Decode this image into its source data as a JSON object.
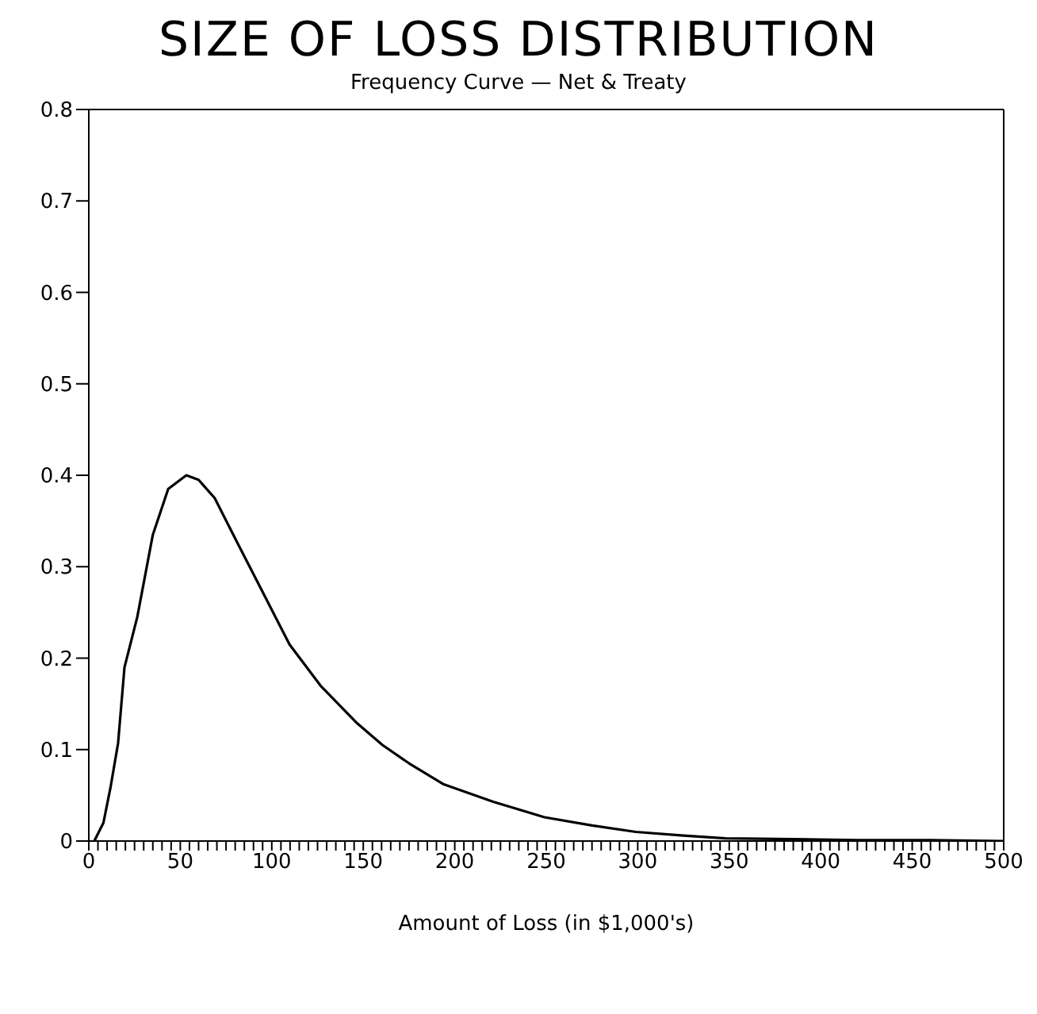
{
  "chart_data": {
    "type": "line",
    "title": "SIZE OF LOSS DISTRIBUTION",
    "subtitle": "Frequency Curve — Net & Treaty",
    "xlabel": "Amount of Loss (in $1,000's)",
    "x": [
      3,
      8,
      12,
      16,
      19.5,
      26.5,
      35,
      43.4,
      53.3,
      60,
      68.8,
      81.5,
      95.6,
      109.7,
      126.6,
      146,
      160.5,
      175,
      194,
      221,
      249,
      275,
      299,
      325,
      348,
      385,
      420,
      460,
      500
    ],
    "series": [
      {
        "color": "#000000",
        "values": [
          0,
          0.02,
          0.06,
          0.107,
          0.19,
          0.245,
          0.335,
          0.385,
          0.4,
          0.395,
          0.375,
          0.325,
          0.27,
          0.215,
          0.17,
          0.13,
          0.105,
          0.085,
          0.062,
          0.043,
          0.026,
          0.017,
          0.01,
          0.006,
          0.003,
          0.002,
          0.001,
          0.001,
          0
        ]
      }
    ],
    "xlim": [
      0,
      500
    ],
    "ylim": [
      0,
      0.8
    ],
    "xticks": [
      0,
      {
        "value": 5,
        "label": null
      },
      {
        "value": 10,
        "label": null
      },
      {
        "value": 15,
        "label": null
      },
      {
        "value": 20,
        "label": null
      },
      {
        "value": 25,
        "label": null
      },
      {
        "value": 30,
        "label": null
      },
      {
        "value": 35,
        "label": null
      },
      {
        "value": 40,
        "label": null
      },
      {
        "value": 45,
        "label": null
      },
      50,
      {
        "value": 55,
        "label": null
      },
      {
        "value": 60,
        "label": null
      },
      {
        "value": 65,
        "label": null
      },
      {
        "value": 70,
        "label": null
      },
      {
        "value": 75,
        "label": null
      },
      {
        "value": 80,
        "label": null
      },
      {
        "value": 85,
        "label": null
      },
      {
        "value": 90,
        "label": null
      },
      {
        "value": 95,
        "label": null
      },
      100,
      {
        "value": 105,
        "label": null
      },
      {
        "value": 110,
        "label": null
      },
      {
        "value": 115,
        "label": null
      },
      {
        "value": 120,
        "label": null
      },
      {
        "value": 125,
        "label": null
      },
      {
        "value": 130,
        "label": null
      },
      {
        "value": 135,
        "label": null
      },
      {
        "value": 140,
        "label": null
      },
      {
        "value": 145,
        "label": null
      },
      150,
      {
        "value": 155,
        "label": null
      },
      {
        "value": 160,
        "label": null
      },
      {
        "value": 165,
        "label": null
      },
      {
        "value": 170,
        "label": null
      },
      {
        "value": 175,
        "label": null
      },
      {
        "value": 180,
        "label": null
      },
      {
        "value": 185,
        "label": null
      },
      {
        "value": 190,
        "label": null
      },
      {
        "value": 195,
        "label": null
      },
      200,
      {
        "value": 205,
        "label": null
      },
      {
        "value": 210,
        "label": null
      },
      {
        "value": 215,
        "label": null
      },
      {
        "value": 220,
        "label": null
      },
      {
        "value": 225,
        "label": null
      },
      {
        "value": 230,
        "label": null
      },
      {
        "value": 235,
        "label": null
      },
      {
        "value": 240,
        "label": null
      },
      {
        "value": 245,
        "label": null
      },
      250,
      {
        "value": 255,
        "label": null
      },
      {
        "value": 260,
        "label": null
      },
      {
        "value": 265,
        "label": null
      },
      {
        "value": 270,
        "label": null
      },
      {
        "value": 275,
        "label": null
      },
      {
        "value": 280,
        "label": null
      },
      {
        "value": 285,
        "label": null
      },
      {
        "value": 290,
        "label": null
      },
      {
        "value": 295,
        "label": null
      },
      300,
      {
        "value": 305,
        "label": null
      },
      {
        "value": 310,
        "label": null
      },
      {
        "value": 315,
        "label": null
      },
      {
        "value": 320,
        "label": null
      },
      {
        "value": 325,
        "label": null
      },
      {
        "value": 330,
        "label": null
      },
      {
        "value": 335,
        "label": null
      },
      {
        "value": 340,
        "label": null
      },
      {
        "value": 345,
        "label": null
      },
      350,
      {
        "value": 355,
        "label": null
      },
      {
        "value": 360,
        "label": null
      },
      {
        "value": 365,
        "label": null
      },
      {
        "value": 370,
        "label": null
      },
      {
        "value": 375,
        "label": null
      },
      {
        "value": 380,
        "label": null
      },
      {
        "value": 385,
        "label": null
      },
      {
        "value": 390,
        "label": null
      },
      {
        "value": 395,
        "label": null
      },
      400,
      {
        "value": 405,
        "label": null
      },
      {
        "value": 410,
        "label": null
      },
      {
        "value": 415,
        "label": null
      },
      {
        "value": 420,
        "label": null
      },
      {
        "value": 425,
        "label": null
      },
      {
        "value": 430,
        "label": null
      },
      {
        "value": 435,
        "label": null
      },
      {
        "value": 440,
        "label": null
      },
      {
        "value": 445,
        "label": null
      },
      450,
      {
        "value": 455,
        "label": null
      },
      {
        "value": 460,
        "label": null
      },
      {
        "value": 465,
        "label": null
      },
      {
        "value": 470,
        "label": null
      },
      {
        "value": 475,
        "label": null
      },
      {
        "value": 480,
        "label": null
      },
      {
        "value": 485,
        "label": null
      },
      {
        "value": 490,
        "label": null
      },
      {
        "value": 495,
        "label": null
      },
      500
    ],
    "yticks": [
      0,
      0.1,
      0.2,
      0.3,
      0.4,
      0.5,
      0.6,
      0.7,
      0.8
    ],
    "marker": "none",
    "line_style": "solid",
    "grid": false
  }
}
